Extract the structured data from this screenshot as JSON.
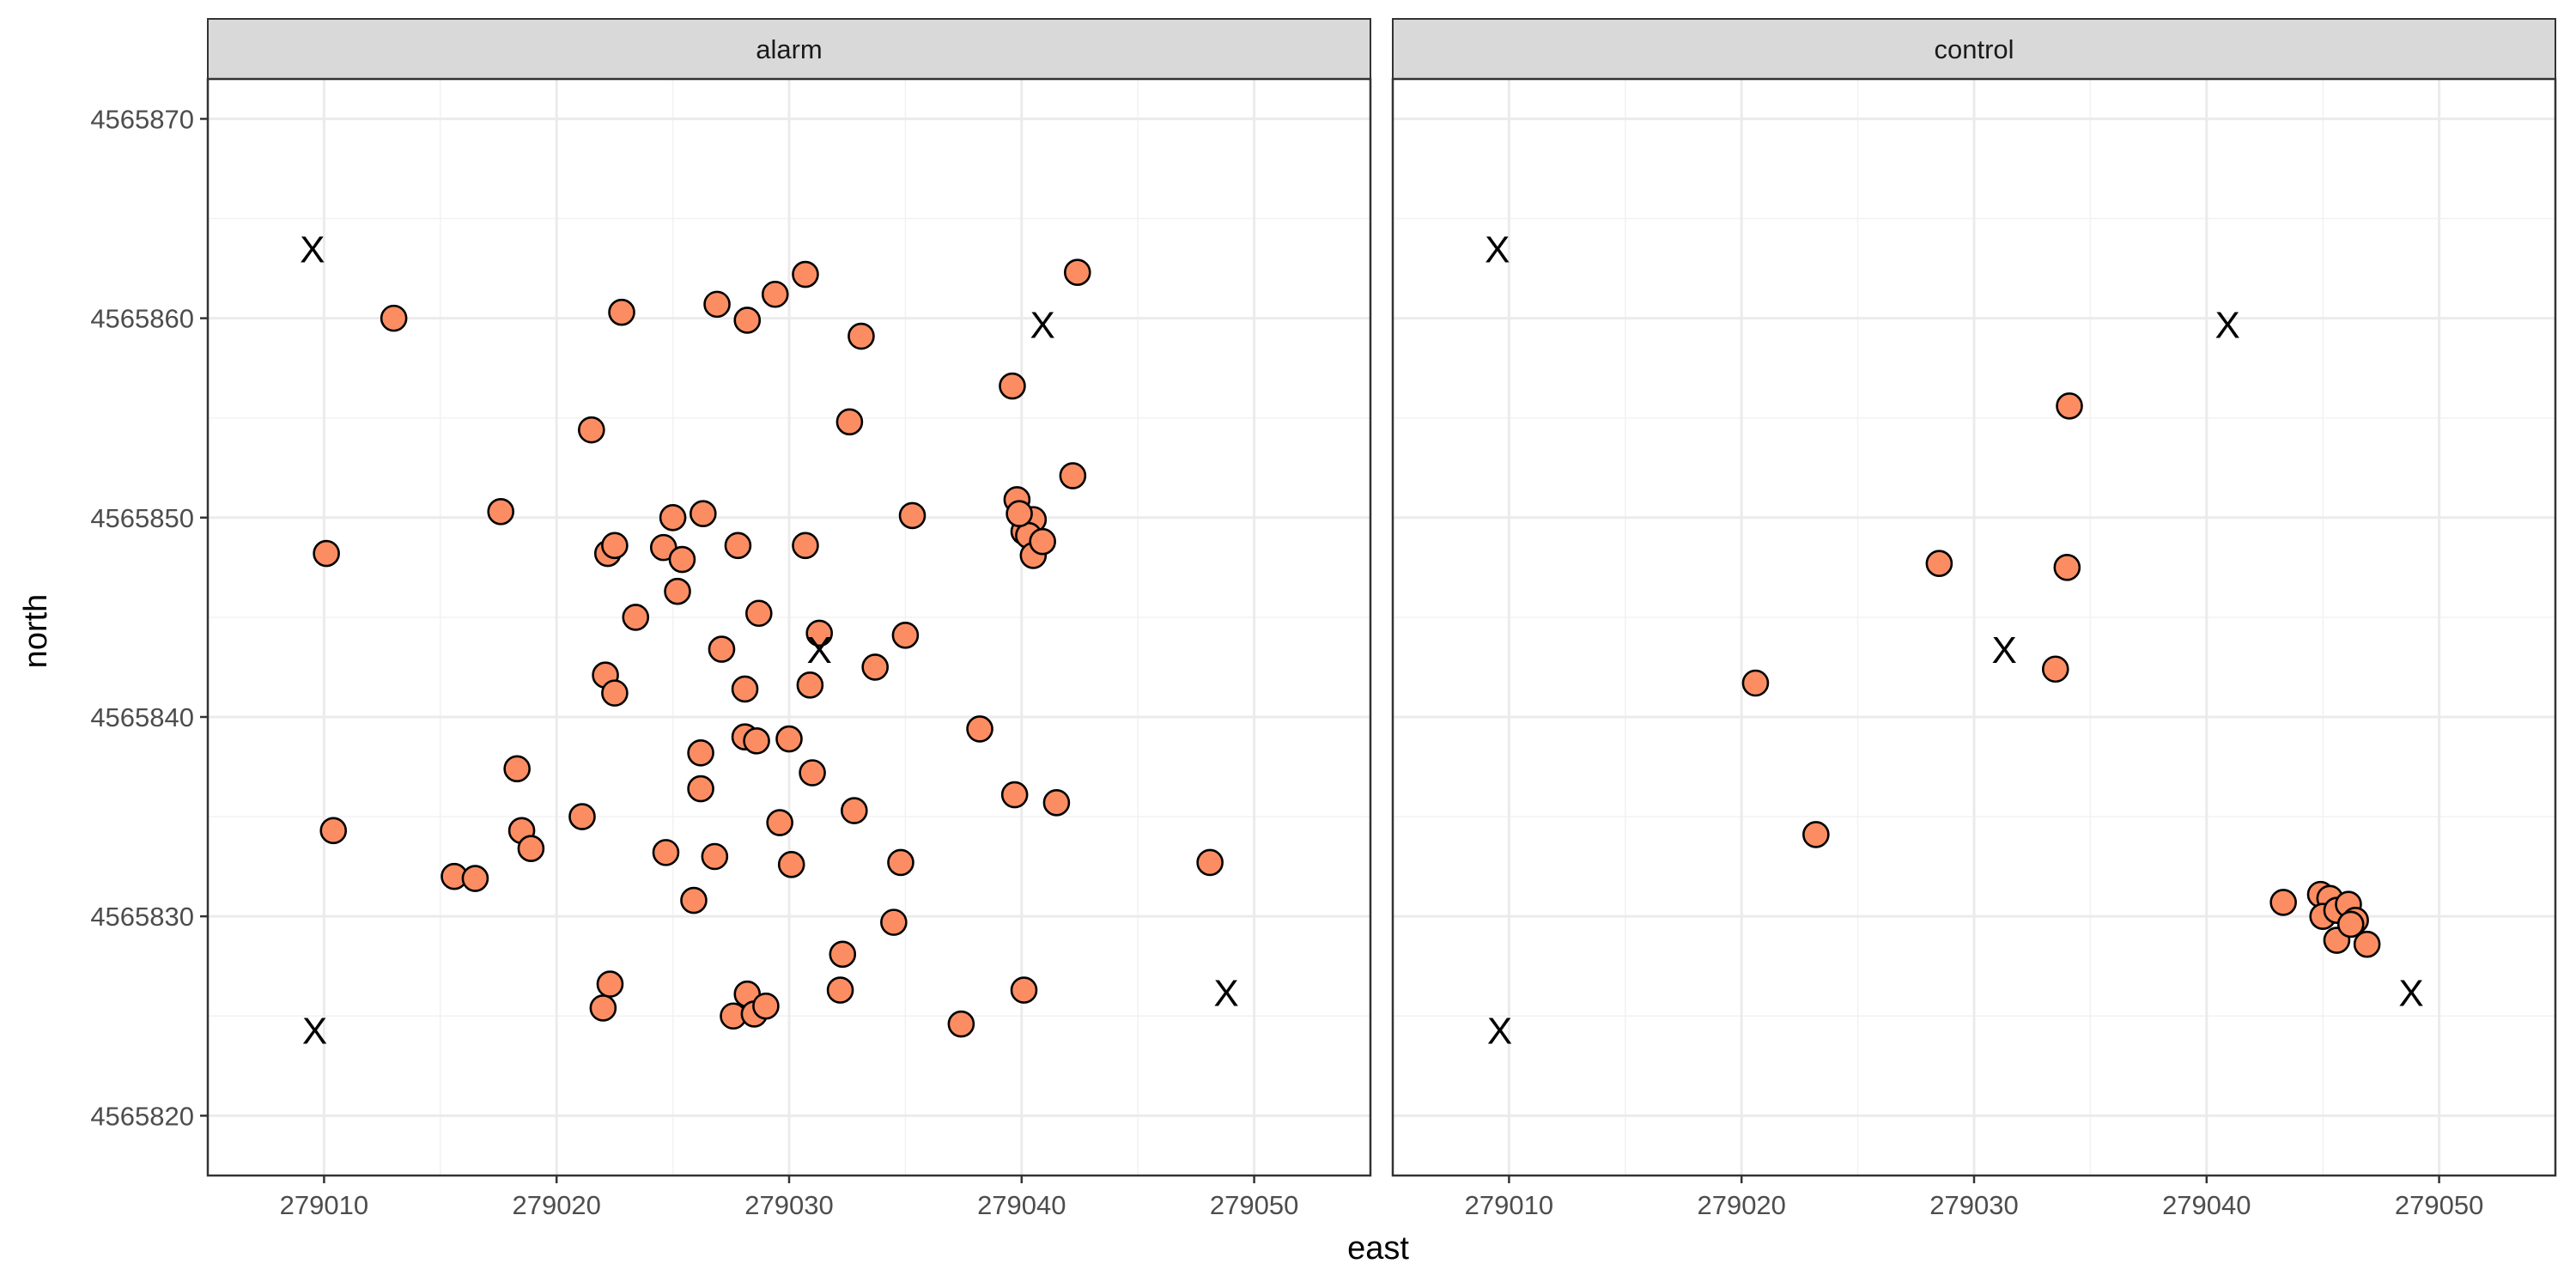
{
  "chart_data": {
    "type": "scatter",
    "xlabel": "east",
    "ylabel": "north",
    "xlim": [
      279005,
      279055
    ],
    "ylim": [
      4565817,
      4565872
    ],
    "x_ticks": [
      279010,
      279020,
      279030,
      279040,
      279050
    ],
    "x_tick_labels": [
      "279010",
      "279020",
      "279030",
      "279040",
      "279050"
    ],
    "y_ticks": [
      4565820,
      4565830,
      4565840,
      4565850,
      4565860,
      4565870
    ],
    "y_tick_labels": [
      "4565820",
      "4565830",
      "4565840",
      "4565850",
      "4565860",
      "4565870"
    ],
    "grid": true,
    "point_color": "#FC8D62",
    "point_edge_color": "#000000",
    "marker_label": "X",
    "markers": [
      {
        "x": 279009.5,
        "y": 4565863.5
      },
      {
        "x": 279040.9,
        "y": 4565859.7
      },
      {
        "x": 279031.3,
        "y": 4565843.4
      },
      {
        "x": 279009.6,
        "y": 4565824.3
      },
      {
        "x": 279048.8,
        "y": 4565826.2
      }
    ],
    "panels": [
      {
        "strip": "alarm",
        "points": [
          {
            "x": 279013.0,
            "y": 4565860.0
          },
          {
            "x": 279022.8,
            "y": 4565860.3
          },
          {
            "x": 279026.9,
            "y": 4565860.7
          },
          {
            "x": 279028.2,
            "y": 4565859.9
          },
          {
            "x": 279029.4,
            "y": 4565861.2
          },
          {
            "x": 279030.7,
            "y": 4565862.2
          },
          {
            "x": 279033.1,
            "y": 4565859.1
          },
          {
            "x": 279042.4,
            "y": 4565862.3
          },
          {
            "x": 279021.5,
            "y": 4565854.4
          },
          {
            "x": 279032.6,
            "y": 4565854.8
          },
          {
            "x": 279039.6,
            "y": 4565856.6
          },
          {
            "x": 279042.2,
            "y": 4565852.1
          },
          {
            "x": 279010.1,
            "y": 4565848.2
          },
          {
            "x": 279017.6,
            "y": 4565850.3
          },
          {
            "x": 279022.2,
            "y": 4565848.2
          },
          {
            "x": 279022.5,
            "y": 4565848.6
          },
          {
            "x": 279024.6,
            "y": 4565848.5
          },
          {
            "x": 279025.0,
            "y": 4565850.0
          },
          {
            "x": 279025.4,
            "y": 4565847.9
          },
          {
            "x": 279026.3,
            "y": 4565850.2
          },
          {
            "x": 279027.8,
            "y": 4565848.6
          },
          {
            "x": 279030.7,
            "y": 4565848.6
          },
          {
            "x": 279035.3,
            "y": 4565850.1
          },
          {
            "x": 279039.8,
            "y": 4565850.9
          },
          {
            "x": 279040.1,
            "y": 4565849.3
          },
          {
            "x": 279040.5,
            "y": 4565849.9
          },
          {
            "x": 279040.3,
            "y": 4565849.1
          },
          {
            "x": 279040.5,
            "y": 4565848.1
          },
          {
            "x": 279040.9,
            "y": 4565848.8
          },
          {
            "x": 279039.9,
            "y": 4565850.2
          },
          {
            "x": 279025.2,
            "y": 4565846.3
          },
          {
            "x": 279023.4,
            "y": 4565845.0
          },
          {
            "x": 279028.7,
            "y": 4565845.2
          },
          {
            "x": 279027.1,
            "y": 4565843.4
          },
          {
            "x": 279031.3,
            "y": 4565844.2
          },
          {
            "x": 279035.0,
            "y": 4565844.1
          },
          {
            "x": 279033.7,
            "y": 4565842.5
          },
          {
            "x": 279022.1,
            "y": 4565842.1
          },
          {
            "x": 279022.5,
            "y": 4565841.2
          },
          {
            "x": 279028.1,
            "y": 4565841.4
          },
          {
            "x": 279030.9,
            "y": 4565841.6
          },
          {
            "x": 279028.1,
            "y": 4565839.0
          },
          {
            "x": 279028.6,
            "y": 4565838.8
          },
          {
            "x": 279030.0,
            "y": 4565838.9
          },
          {
            "x": 279038.2,
            "y": 4565839.4
          },
          {
            "x": 279026.2,
            "y": 4565838.2
          },
          {
            "x": 279018.3,
            "y": 4565837.4
          },
          {
            "x": 279031.0,
            "y": 4565837.2
          },
          {
            "x": 279026.2,
            "y": 4565836.4
          },
          {
            "x": 279039.7,
            "y": 4565836.1
          },
          {
            "x": 279041.5,
            "y": 4565835.7
          },
          {
            "x": 279010.4,
            "y": 4565834.3
          },
          {
            "x": 279018.5,
            "y": 4565834.3
          },
          {
            "x": 279018.9,
            "y": 4565833.4
          },
          {
            "x": 279021.1,
            "y": 4565835.0
          },
          {
            "x": 279029.6,
            "y": 4565834.7
          },
          {
            "x": 279032.8,
            "y": 4565835.3
          },
          {
            "x": 279024.7,
            "y": 4565833.2
          },
          {
            "x": 279026.8,
            "y": 4565833.0
          },
          {
            "x": 279030.1,
            "y": 4565832.6
          },
          {
            "x": 279034.8,
            "y": 4565832.7
          },
          {
            "x": 279048.1,
            "y": 4565832.7
          },
          {
            "x": 279015.6,
            "y": 4565832.0
          },
          {
            "x": 279016.5,
            "y": 4565831.9
          },
          {
            "x": 279025.9,
            "y": 4565830.8
          },
          {
            "x": 279034.5,
            "y": 4565829.7
          },
          {
            "x": 279032.3,
            "y": 4565828.1
          },
          {
            "x": 279022.3,
            "y": 4565826.6
          },
          {
            "x": 279022.0,
            "y": 4565825.4
          },
          {
            "x": 279027.6,
            "y": 4565825.0
          },
          {
            "x": 279028.2,
            "y": 4565826.1
          },
          {
            "x": 279028.5,
            "y": 4565825.1
          },
          {
            "x": 279029.0,
            "y": 4565825.5
          },
          {
            "x": 279032.2,
            "y": 4565826.3
          },
          {
            "x": 279037.4,
            "y": 4565824.6
          },
          {
            "x": 279040.1,
            "y": 4565826.3
          }
        ]
      },
      {
        "strip": "control",
        "points": [
          {
            "x": 279034.1,
            "y": 4565855.6
          },
          {
            "x": 279028.5,
            "y": 4565847.7
          },
          {
            "x": 279034.0,
            "y": 4565847.5
          },
          {
            "x": 279020.6,
            "y": 4565841.7
          },
          {
            "x": 279033.5,
            "y": 4565842.4
          },
          {
            "x": 279023.2,
            "y": 4565834.1
          },
          {
            "x": 279043.3,
            "y": 4565830.7
          },
          {
            "x": 279044.9,
            "y": 4565831.1
          },
          {
            "x": 279045.3,
            "y": 4565830.9
          },
          {
            "x": 279045.0,
            "y": 4565830.0
          },
          {
            "x": 279045.6,
            "y": 4565830.3
          },
          {
            "x": 279046.1,
            "y": 4565830.6
          },
          {
            "x": 279045.6,
            "y": 4565828.8
          },
          {
            "x": 279046.4,
            "y": 4565829.8
          },
          {
            "x": 279046.2,
            "y": 4565829.6
          },
          {
            "x": 279046.9,
            "y": 4565828.6
          }
        ]
      }
    ]
  }
}
